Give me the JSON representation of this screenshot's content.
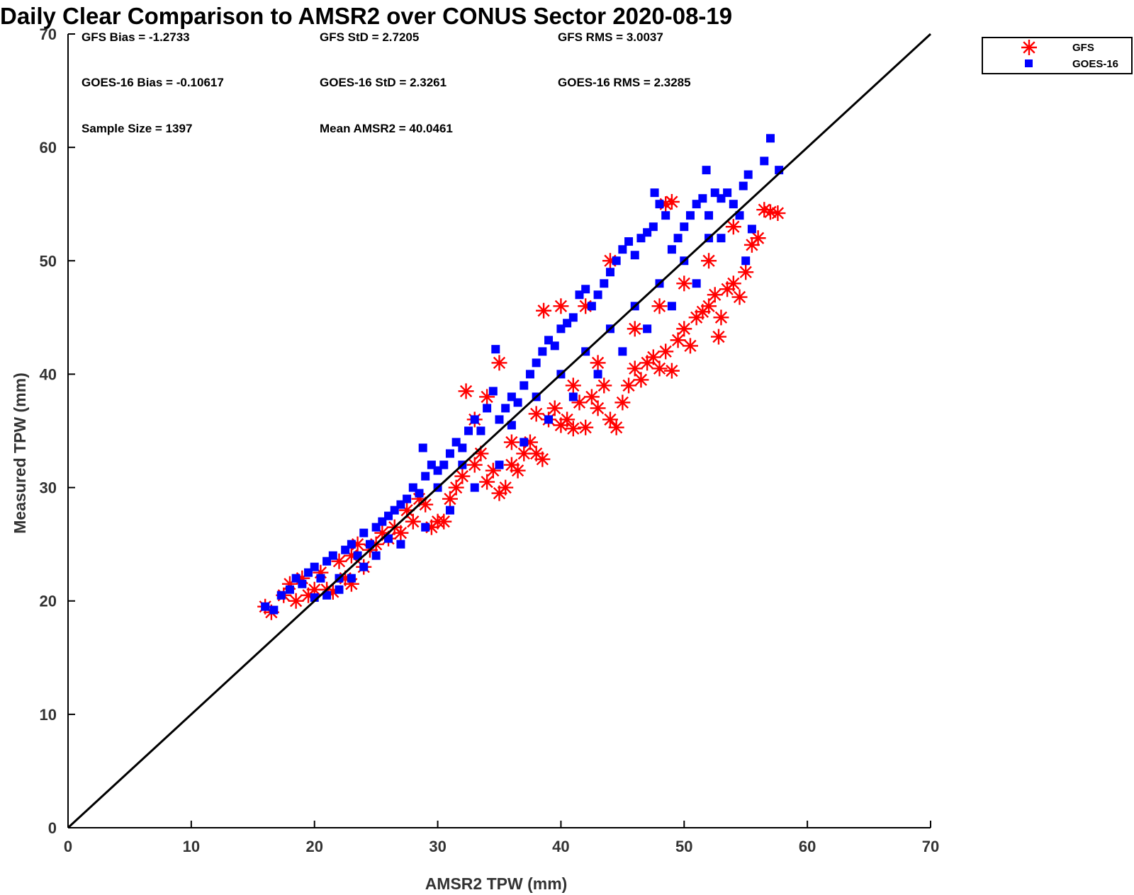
{
  "chart_data": {
    "type": "scatter",
    "title": "Daily Clear Comparison to AMSR2 over CONUS Sector 2020-08-19",
    "xlabel": "AMSR2 TPW (mm)",
    "ylabel": "Measured TPW (mm)",
    "xlim": [
      0,
      70
    ],
    "ylim": [
      0,
      70
    ],
    "xticks": [
      "0",
      "10",
      "20",
      "30",
      "40",
      "50",
      "60",
      "70"
    ],
    "yticks": [
      "0",
      "10",
      "20",
      "30",
      "40",
      "50",
      "60",
      "70"
    ],
    "grid": false,
    "legend_position": "outside-top-right",
    "reference_line": [
      [
        0,
        0
      ],
      [
        70,
        70
      ]
    ],
    "stats": [
      "GFS Bias = -1.2733",
      "GFS StD = 2.7205",
      "GFS RMS = 3.0037",
      "GOES-16 Bias = -0.10617",
      "GOES-16 StD = 2.3261",
      "GOES-16 RMS = 2.3285",
      "Sample Size = 1397",
      "Mean AMSR2 = 40.0461"
    ],
    "series": [
      {
        "name": "GFS",
        "marker": "asterisk",
        "color": "#ff0000",
        "points": [
          [
            16,
            19.5
          ],
          [
            16.5,
            19
          ],
          [
            17.5,
            20.5
          ],
          [
            18,
            21.5
          ],
          [
            18.5,
            20
          ],
          [
            19,
            22
          ],
          [
            19.5,
            20.5
          ],
          [
            20,
            21
          ],
          [
            20.5,
            22.5
          ],
          [
            21,
            21
          ],
          [
            21.5,
            20.8
          ],
          [
            22,
            23.5
          ],
          [
            22.5,
            22
          ],
          [
            23,
            24
          ],
          [
            23,
            21.5
          ],
          [
            23.5,
            25
          ],
          [
            24,
            23
          ],
          [
            24.5,
            24.5
          ],
          [
            25,
            25
          ],
          [
            25.5,
            26
          ],
          [
            26,
            25.5
          ],
          [
            26.5,
            26.5
          ],
          [
            27,
            26
          ],
          [
            27.5,
            28
          ],
          [
            28,
            27
          ],
          [
            28.5,
            29
          ],
          [
            29,
            28.5
          ],
          [
            29.5,
            26.5
          ],
          [
            30,
            27
          ],
          [
            30.5,
            27
          ],
          [
            31,
            29
          ],
          [
            31.5,
            30
          ],
          [
            32,
            31
          ],
          [
            32.3,
            38.5
          ],
          [
            33,
            32
          ],
          [
            33.5,
            33
          ],
          [
            34,
            30.5
          ],
          [
            34.5,
            31.5
          ],
          [
            35,
            29.5
          ],
          [
            35.5,
            30
          ],
          [
            36,
            32
          ],
          [
            36.5,
            31.5
          ],
          [
            37,
            33
          ],
          [
            37.5,
            34
          ],
          [
            38,
            33
          ],
          [
            38.5,
            32.5
          ],
          [
            39,
            36
          ],
          [
            39.5,
            37
          ],
          [
            40,
            35.5
          ],
          [
            40.5,
            36
          ],
          [
            41,
            35.2
          ],
          [
            41.5,
            37.5
          ],
          [
            42,
            35.3
          ],
          [
            42.5,
            38
          ],
          [
            43,
            37
          ],
          [
            43.5,
            39
          ],
          [
            44,
            36
          ],
          [
            44.5,
            35.3
          ],
          [
            45,
            37.5
          ],
          [
            45.5,
            39
          ],
          [
            46,
            40.5
          ],
          [
            46.5,
            39.5
          ],
          [
            47,
            41
          ],
          [
            47.5,
            41.5
          ],
          [
            48,
            40.5
          ],
          [
            48.5,
            42
          ],
          [
            49,
            40.3
          ],
          [
            49.5,
            43
          ],
          [
            50,
            44
          ],
          [
            50.5,
            42.5
          ],
          [
            51,
            45
          ],
          [
            51.5,
            45.5
          ],
          [
            52,
            46
          ],
          [
            52.5,
            47
          ],
          [
            52.8,
            43.3
          ],
          [
            53,
            45
          ],
          [
            53.5,
            47.5
          ],
          [
            54,
            48
          ],
          [
            54.5,
            46.8
          ],
          [
            55,
            49
          ],
          [
            55.5,
            51.4
          ],
          [
            56,
            52
          ],
          [
            56.5,
            54.5
          ],
          [
            57,
            54.3
          ],
          [
            57.6,
            54.2
          ],
          [
            48.5,
            55
          ],
          [
            49,
            55.2
          ],
          [
            44,
            50
          ],
          [
            42,
            46
          ],
          [
            40,
            46
          ],
          [
            38.6,
            45.6
          ],
          [
            35,
            41
          ],
          [
            33,
            36
          ],
          [
            34,
            38
          ],
          [
            36,
            34
          ],
          [
            38,
            36.5
          ],
          [
            41,
            39
          ],
          [
            43,
            41
          ],
          [
            46,
            44
          ],
          [
            48,
            46
          ],
          [
            50,
            48
          ],
          [
            52,
            50
          ],
          [
            54,
            53
          ]
        ]
      },
      {
        "name": "GOES-16",
        "marker": "square",
        "color": "#0000ff",
        "points": [
          [
            16,
            19.5
          ],
          [
            16.7,
            19.2
          ],
          [
            17.3,
            20.5
          ],
          [
            18,
            21
          ],
          [
            18.5,
            22
          ],
          [
            19,
            21.5
          ],
          [
            19.5,
            22.5
          ],
          [
            20,
            23
          ],
          [
            20.5,
            22
          ],
          [
            21,
            23.5
          ],
          [
            21.5,
            24
          ],
          [
            22,
            22
          ],
          [
            22.5,
            24.5
          ],
          [
            23,
            25
          ],
          [
            23.5,
            24
          ],
          [
            24,
            26
          ],
          [
            24.5,
            25
          ],
          [
            25,
            26.5
          ],
          [
            25.5,
            27
          ],
          [
            26,
            27.5
          ],
          [
            26.5,
            28
          ],
          [
            27,
            28.5
          ],
          [
            27.5,
            29
          ],
          [
            28,
            30
          ],
          [
            28.5,
            29.5
          ],
          [
            28.8,
            33.5
          ],
          [
            29,
            31
          ],
          [
            29.5,
            32
          ],
          [
            30,
            31.5
          ],
          [
            30.5,
            32
          ],
          [
            31,
            33
          ],
          [
            31.5,
            34
          ],
          [
            32,
            33.5
          ],
          [
            32.5,
            35
          ],
          [
            33,
            36
          ],
          [
            33.5,
            35
          ],
          [
            34,
            37
          ],
          [
            34.5,
            38.5
          ],
          [
            34.7,
            42.2
          ],
          [
            35,
            36
          ],
          [
            35.5,
            37
          ],
          [
            36,
            38
          ],
          [
            36.5,
            37.5
          ],
          [
            37,
            39
          ],
          [
            37.5,
            40
          ],
          [
            38,
            41
          ],
          [
            38.5,
            42
          ],
          [
            39,
            43
          ],
          [
            39.5,
            42.5
          ],
          [
            40,
            44
          ],
          [
            40.5,
            44.5
          ],
          [
            41,
            45
          ],
          [
            41.5,
            47
          ],
          [
            42,
            47.5
          ],
          [
            42.5,
            46
          ],
          [
            43,
            47
          ],
          [
            43.5,
            48
          ],
          [
            44,
            49
          ],
          [
            44.5,
            50
          ],
          [
            45,
            51
          ],
          [
            45.5,
            51.7
          ],
          [
            46,
            50.5
          ],
          [
            46.5,
            52
          ],
          [
            47,
            52.5
          ],
          [
            47.5,
            53
          ],
          [
            47.6,
            56
          ],
          [
            48,
            55
          ],
          [
            48.5,
            54
          ],
          [
            49,
            51
          ],
          [
            49.5,
            52
          ],
          [
            50,
            53
          ],
          [
            50.5,
            54
          ],
          [
            51,
            55
          ],
          [
            51.5,
            55.5
          ],
          [
            51.8,
            58
          ],
          [
            52,
            54
          ],
          [
            52.5,
            56
          ],
          [
            53,
            55.5
          ],
          [
            53.5,
            56
          ],
          [
            54,
            55
          ],
          [
            54.5,
            54
          ],
          [
            54.8,
            56.6
          ],
          [
            55.2,
            57.6
          ],
          [
            56.5,
            58.8
          ],
          [
            57,
            60.8
          ],
          [
            57.7,
            58
          ],
          [
            55.5,
            52.8
          ],
          [
            55,
            50
          ],
          [
            53,
            52
          ],
          [
            51,
            48
          ],
          [
            49,
            46
          ],
          [
            47,
            44
          ],
          [
            45,
            42
          ],
          [
            43,
            40
          ],
          [
            41,
            38
          ],
          [
            39,
            36
          ],
          [
            37,
            34
          ],
          [
            35,
            32
          ],
          [
            33,
            30
          ],
          [
            31,
            28
          ],
          [
            29,
            26.5
          ],
          [
            27,
            25
          ],
          [
            25,
            24
          ],
          [
            23,
            22
          ],
          [
            21,
            20.5
          ],
          [
            20,
            20.3
          ],
          [
            22,
            21
          ],
          [
            24,
            23
          ],
          [
            26,
            25.5
          ],
          [
            30,
            30
          ],
          [
            32,
            32
          ],
          [
            36,
            35.5
          ],
          [
            38,
            38
          ],
          [
            40,
            40
          ],
          [
            42,
            42
          ],
          [
            44,
            44
          ],
          [
            46,
            46
          ],
          [
            48,
            48
          ],
          [
            50,
            50
          ],
          [
            52,
            52
          ]
        ]
      }
    ]
  }
}
